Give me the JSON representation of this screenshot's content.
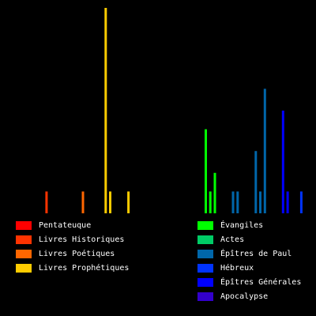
{
  "chart_data": {
    "type": "bar",
    "title": "",
    "xlabel": "",
    "ylabel": "",
    "x_range": [
      1,
      66
    ],
    "y_range": [
      0,
      66
    ],
    "grid": false,
    "legend_placement": "bottom",
    "groups": [
      {
        "name": "Pentateuque",
        "color": "#ff0000"
      },
      {
        "name": "Livres Historiques",
        "color": "#ff3300"
      },
      {
        "name": "Livres Poétiques",
        "color": "#ff6600"
      },
      {
        "name": "Livres Prophétiques",
        "color": "#ffcc00"
      },
      {
        "name": "Évangiles",
        "color": "#00ff00"
      },
      {
        "name": "Actes",
        "color": "#00cc66"
      },
      {
        "name": "Épîtres de Paul",
        "color": "#0066aa"
      },
      {
        "name": "Hébreux",
        "color": "#0033ff"
      },
      {
        "name": "Épîtres Générales",
        "color": "#0000ff"
      },
      {
        "name": "Apocalypse",
        "color": "#3300cc"
      }
    ],
    "bars": [
      {
        "x": 9,
        "value": 7,
        "group": "Livres Historiques"
      },
      {
        "x": 17,
        "value": 7,
        "group": "Livres Poétiques"
      },
      {
        "x": 22,
        "value": 66,
        "group": "Livres Prophétiques"
      },
      {
        "x": 23,
        "value": 7,
        "group": "Livres Prophétiques"
      },
      {
        "x": 27,
        "value": 7,
        "group": "Livres Prophétiques"
      },
      {
        "x": 44,
        "value": 27,
        "group": "Évangiles"
      },
      {
        "x": 45,
        "value": 7,
        "group": "Évangiles"
      },
      {
        "x": 46,
        "value": 13,
        "group": "Évangiles"
      },
      {
        "x": 50,
        "value": 7,
        "group": "Épîtres de Paul"
      },
      {
        "x": 51,
        "value": 7,
        "group": "Épîtres de Paul"
      },
      {
        "x": 55,
        "value": 20,
        "group": "Épîtres de Paul"
      },
      {
        "x": 56,
        "value": 7,
        "group": "Épîtres de Paul"
      },
      {
        "x": 57,
        "value": 40,
        "group": "Épîtres de Paul"
      },
      {
        "x": 61,
        "value": 33,
        "group": "Épîtres Générales"
      },
      {
        "x": 62,
        "value": 7,
        "group": "Épîtres Générales"
      },
      {
        "x": 65,
        "value": 7,
        "group": "Hébreux"
      }
    ]
  },
  "legend": {
    "left": [
      {
        "label": "Pentateuque",
        "color": "#ff0000"
      },
      {
        "label": "Livres Historiques",
        "color": "#ff3300"
      },
      {
        "label": "Livres Poétiques",
        "color": "#ff6600"
      },
      {
        "label": "Livres Prophétiques",
        "color": "#ffcc00"
      }
    ],
    "right": [
      {
        "label": "Évangiles",
        "color": "#00ff00"
      },
      {
        "label": "Actes",
        "color": "#00cc66"
      },
      {
        "label": "Épîtres de Paul",
        "color": "#0066aa"
      },
      {
        "label": "Hébreux",
        "color": "#0033ff"
      },
      {
        "label": "Épîtres Générales",
        "color": "#0000ff"
      },
      {
        "label": "Apocalypse",
        "color": "#3300cc"
      }
    ]
  }
}
